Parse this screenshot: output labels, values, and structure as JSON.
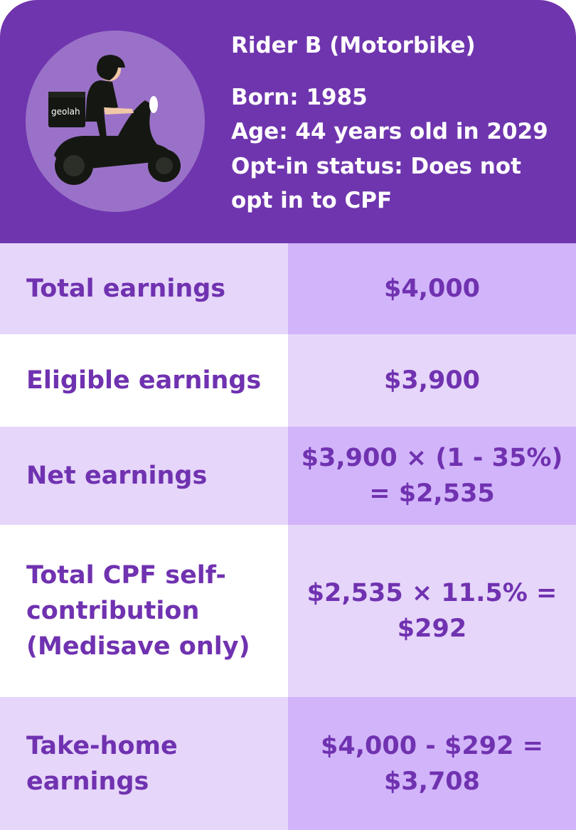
{
  "header": {
    "title": "Rider B (Motorbike)",
    "born": "Born: 1985",
    "age": "Age: 44 years old in 2029",
    "optin_line1": "Opt-in status: Does not",
    "optin_line2": "opt in to CPF",
    "illustration": {
      "icon": "scooter-rider-illustration",
      "box_logo": "geolah"
    }
  },
  "colors": {
    "header": "#6f35ae",
    "circle": "#9a71c8",
    "row_light": "#e6d6fa",
    "row_dark": "#d2b4fa",
    "text": "#7032b0"
  },
  "rows": [
    {
      "label": "Total earnings",
      "value": "$4,000"
    },
    {
      "label": "Eligible earnings",
      "value": "$3,900"
    },
    {
      "label": "Net earnings",
      "value_line1": "$3,900 × (1 - 35%)",
      "value_line2": "= $2,535"
    },
    {
      "label_line1": "Total CPF self-",
      "label_line2": "contribution",
      "label_line3": "(Medisave only)",
      "value_line1": "$2,535 × 11.5% =",
      "value_line2": "$292"
    },
    {
      "label_line1": "Take-home",
      "label_line2": "earnings",
      "value_line1": "$4,000 - $292 =",
      "value_line2": "$3,708"
    }
  ]
}
